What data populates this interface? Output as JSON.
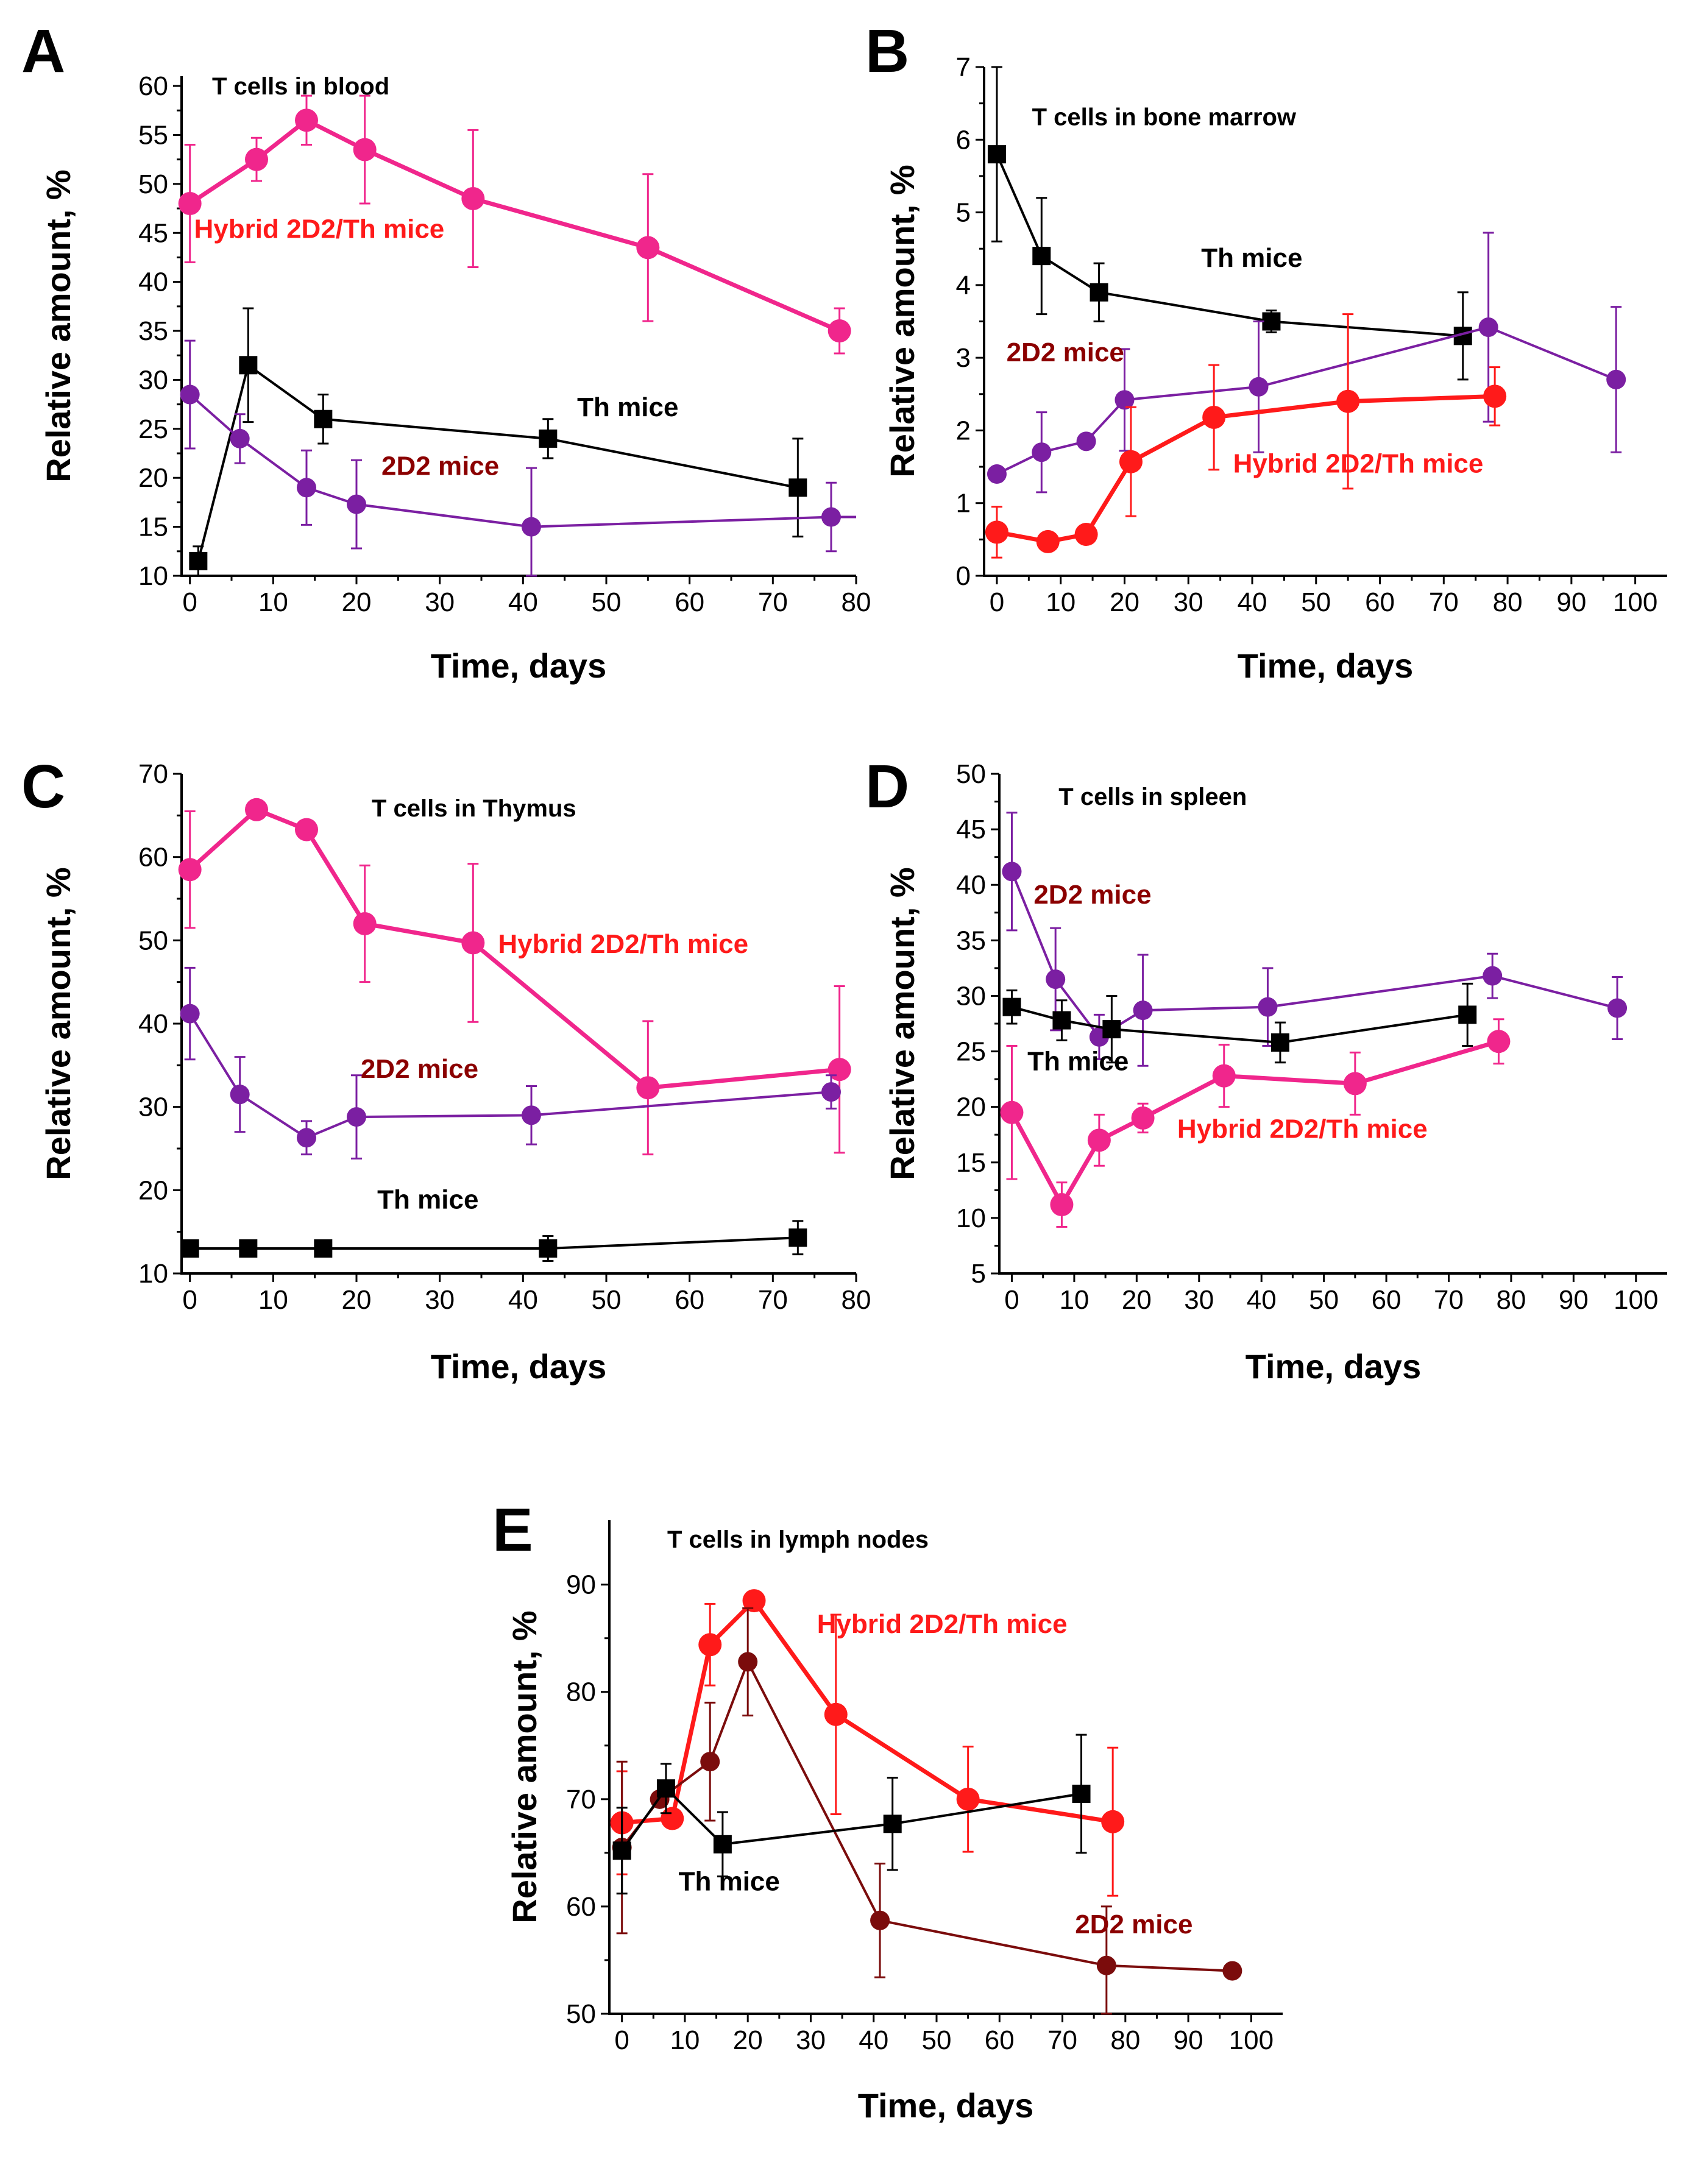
{
  "chart_data": [
    {
      "id": "A",
      "type": "line",
      "panel_letter": "A",
      "title": "T cells in blood",
      "xlabel": "Time, days",
      "ylabel": "Relative amount, %",
      "xlim": [
        -1,
        80
      ],
      "ylim": [
        10,
        61
      ],
      "xticks": [
        0,
        10,
        20,
        30,
        40,
        50,
        60,
        70,
        80
      ],
      "yticks": [
        10,
        15,
        20,
        25,
        30,
        35,
        40,
        45,
        50,
        55,
        60
      ],
      "series": [
        {
          "name": "Hybrid 2D2/Th mice",
          "color": "#f0268c",
          "marker": "circle",
          "lineWidth": 7,
          "x": [
            0,
            8,
            14,
            21,
            34,
            55,
            78
          ],
          "y": [
            48,
            52.5,
            56.5,
            53.5,
            48.5,
            43.5,
            35
          ],
          "err": [
            6,
            2.2,
            2.5,
            5.5,
            7,
            7.5,
            2.3
          ]
        },
        {
          "name": "Th mice",
          "color": "#000000",
          "marker": "square",
          "lineWidth": 4,
          "x": [
            1,
            7,
            16,
            43,
            73
          ],
          "y": [
            11.5,
            31.5,
            26,
            24,
            19
          ],
          "err": [
            1.5,
            5.8,
            2.5,
            2,
            5
          ]
        },
        {
          "name": "2D2 mice",
          "color": "#7b1fa2",
          "marker": "circle",
          "lineWidth": 4,
          "x": [
            0,
            6,
            14,
            20,
            41,
            77,
            80
          ],
          "y": [
            28.5,
            24,
            19,
            17.3,
            15,
            16,
            16
          ],
          "err": [
            5.5,
            2.5,
            3.8,
            4.5,
            6,
            3.5,
            null
          ]
        }
      ],
      "labels": [
        {
          "text": "Hybrid 2D2/Th mice",
          "color": "#ff1a1a",
          "x": 0.5,
          "y": 44.5
        },
        {
          "text": "Th mice",
          "color": "#000000",
          "x": 46.5,
          "y": 26.3
        },
        {
          "text": "2D2 mice",
          "color": "#8b0000",
          "x": 23,
          "y": 20.3
        }
      ]
    },
    {
      "id": "B",
      "type": "line",
      "panel_letter": "B",
      "title": "T cells in bone marrow",
      "xlabel": "Time, days",
      "ylabel": "Relative amount, %",
      "xlim": [
        -2,
        105
      ],
      "ylim": [
        0,
        7
      ],
      "xticks": [
        0,
        10,
        20,
        30,
        40,
        50,
        60,
        70,
        80,
        90,
        100
      ],
      "yticks": [
        0,
        1,
        2,
        3,
        4,
        5,
        6,
        7
      ],
      "series": [
        {
          "name": "Th mice",
          "color": "#000000",
          "marker": "square",
          "lineWidth": 4,
          "x": [
            0,
            7,
            16,
            43,
            73
          ],
          "y": [
            5.8,
            4.4,
            3.9,
            3.5,
            3.3
          ],
          "err": [
            1.2,
            0.8,
            0.4,
            0.15,
            0.6
          ]
        },
        {
          "name": "2D2 mice",
          "color": "#7b1fa2",
          "marker": "circle",
          "lineWidth": 4,
          "x": [
            0,
            7,
            14,
            20,
            41,
            77,
            97
          ],
          "y": [
            1.4,
            1.7,
            1.85,
            2.42,
            2.6,
            3.42,
            2.7
          ],
          "err": [
            null,
            0.55,
            null,
            0.7,
            0.9,
            1.3,
            1.0
          ]
        },
        {
          "name": "Hybrid 2D2/Th mice",
          "color": "#ff1a1a",
          "marker": "circle",
          "lineWidth": 7,
          "x": [
            0,
            8,
            14,
            21,
            34,
            55,
            78
          ],
          "y": [
            0.6,
            0.47,
            0.57,
            1.57,
            2.18,
            2.4,
            2.47
          ],
          "err": [
            0.35,
            null,
            null,
            0.75,
            0.72,
            1.2,
            0.4
          ]
        }
      ],
      "labels": [
        {
          "text": "T cells in bone marrow",
          "color": "#000000",
          "x": 5.5,
          "y": 6.2,
          "size": 40
        },
        {
          "text": "Th mice",
          "color": "#000000",
          "x": 32,
          "y": 4.25
        },
        {
          "text": "2D2 mice",
          "color": "#8b0000",
          "x": 1.5,
          "y": 2.95
        },
        {
          "text": "Hybrid 2D2/Th mice",
          "color": "#ff1a1a",
          "x": 37,
          "y": 1.42
        }
      ]
    },
    {
      "id": "C",
      "type": "line",
      "panel_letter": "C",
      "title": "T cells in Thymus",
      "xlabel": "Time, days",
      "ylabel": "Relative amount, %",
      "xlim": [
        -1,
        80
      ],
      "ylim": [
        10,
        70
      ],
      "xticks": [
        0,
        10,
        20,
        30,
        40,
        50,
        60,
        70,
        80
      ],
      "yticks": [
        10,
        20,
        30,
        40,
        50,
        60,
        70
      ],
      "series": [
        {
          "name": "Hybrid 2D2/Th mice",
          "color": "#f0268c",
          "marker": "circle",
          "lineWidth": 7,
          "x": [
            0,
            8,
            14,
            21,
            34,
            55,
            78
          ],
          "y": [
            58.5,
            65.7,
            63.3,
            52,
            49.7,
            32.3,
            34.5
          ],
          "err": [
            7,
            null,
            null,
            7,
            9.5,
            8,
            10
          ]
        },
        {
          "name": "2D2 mice",
          "color": "#7b1fa2",
          "marker": "circle",
          "lineWidth": 4,
          "x": [
            0,
            6,
            14,
            20,
            41,
            77
          ],
          "y": [
            41.2,
            31.5,
            26.3,
            28.8,
            29,
            31.8
          ],
          "err": [
            5.5,
            4.5,
            2,
            5,
            3.5,
            2
          ]
        },
        {
          "name": "Th mice",
          "color": "#000000",
          "marker": "square",
          "lineWidth": 4,
          "x": [
            0,
            7,
            16,
            43,
            73
          ],
          "y": [
            13,
            13,
            13,
            13,
            14.3
          ],
          "err": [
            null,
            null,
            null,
            1.5,
            2
          ]
        }
      ],
      "labels": [
        {
          "text": "Hybrid 2D2/Th mice",
          "color": "#ff1a1a",
          "x": 37,
          "y": 48.5
        },
        {
          "text": "2D2 mice",
          "color": "#8b0000",
          "x": 20.5,
          "y": 33.5
        },
        {
          "text": "Th mice",
          "color": "#000000",
          "x": 22.5,
          "y": 17.8
        }
      ]
    },
    {
      "id": "D",
      "type": "line",
      "panel_letter": "D",
      "title": "T cells in spleen",
      "xlabel": "Time, days",
      "ylabel": "Relative amount, %",
      "xlim": [
        -2,
        105
      ],
      "ylim": [
        5,
        50
      ],
      "xticks": [
        0,
        10,
        20,
        30,
        40,
        50,
        60,
        70,
        80,
        90,
        100
      ],
      "yticks": [
        5,
        10,
        15,
        20,
        25,
        30,
        35,
        40,
        45,
        50
      ],
      "series": [
        {
          "name": "2D2 mice",
          "color": "#7b1fa2",
          "marker": "circle",
          "lineWidth": 4,
          "x": [
            0,
            7,
            14,
            21,
            41,
            77,
            97
          ],
          "y": [
            41.2,
            31.5,
            26.3,
            28.7,
            29,
            31.8,
            28.9
          ],
          "err": [
            5.3,
            4.6,
            2,
            5,
            3.5,
            2,
            2.8
          ]
        },
        {
          "name": "Th mice",
          "color": "#000000",
          "marker": "square",
          "lineWidth": 4,
          "x": [
            0,
            8,
            16,
            43,
            73
          ],
          "y": [
            29,
            27.8,
            27,
            25.8,
            28.3
          ],
          "err": [
            1.5,
            1.8,
            3,
            1.8,
            2.8
          ]
        },
        {
          "name": "Hybrid 2D2/Th mice",
          "color": "#f0268c",
          "marker": "circle",
          "lineWidth": 7,
          "x": [
            0,
            8,
            14,
            21,
            34,
            55,
            78
          ],
          "y": [
            19.5,
            11.2,
            17,
            19,
            22.8,
            22.1,
            25.9
          ],
          "err": [
            6,
            2,
            2.3,
            1.3,
            2.8,
            2.8,
            2
          ]
        }
      ],
      "labels": [
        {
          "text": "T cells in spleen",
          "color": "#000000",
          "x": 7.5,
          "y": 47.2,
          "size": 40
        },
        {
          "text": "2D2 mice",
          "color": "#8b0000",
          "x": 3.5,
          "y": 38.3
        },
        {
          "text": "Th mice",
          "color": "#000000",
          "x": 2.5,
          "y": 23.3
        },
        {
          "text": "Hybrid 2D2/Th mice",
          "color": "#ff1a1a",
          "x": 26.5,
          "y": 17.2
        }
      ]
    },
    {
      "id": "E",
      "type": "line",
      "panel_letter": "E",
      "title": "T cells in lymph nodes",
      "xlabel": "Time, days",
      "ylabel": "Relative amount, %",
      "xlim": [
        -2,
        105
      ],
      "ylim": [
        50,
        96
      ],
      "xticks": [
        0,
        10,
        20,
        30,
        40,
        50,
        60,
        70,
        80,
        90,
        100
      ],
      "yticks": [
        50,
        60,
        70,
        80,
        90
      ],
      "series": [
        {
          "name": "Hybrid 2D2/Th mice",
          "color": "#ff1a1a",
          "marker": "circle",
          "lineWidth": 7,
          "x": [
            0,
            8,
            14,
            21,
            34,
            55,
            78
          ],
          "y": [
            67.8,
            68.2,
            84.4,
            88.5,
            77.9,
            70,
            67.9
          ],
          "err": [
            4.8,
            null,
            3.8,
            null,
            9.3,
            4.9,
            6.9
          ]
        },
        {
          "name": "2D2 mice",
          "color": "#7b0c0c",
          "marker": "circle",
          "lineWidth": 4,
          "x": [
            0,
            6,
            14,
            20,
            41,
            77,
            97
          ],
          "y": [
            65.5,
            70,
            73.5,
            82.8,
            58.7,
            54.5,
            54
          ],
          "err": [
            8,
            null,
            5.5,
            5,
            5.3,
            5.5,
            null
          ]
        },
        {
          "name": "Th mice",
          "color": "#000000",
          "marker": "square",
          "lineWidth": 4,
          "x": [
            0,
            7,
            16,
            43,
            73
          ],
          "y": [
            65.2,
            71,
            65.8,
            67.7,
            70.5
          ],
          "err": [
            4,
            2.3,
            3,
            4.3,
            5.5
          ]
        }
      ],
      "labels": [
        {
          "text": "Hybrid 2D2/Th mice",
          "color": "#ff1a1a",
          "x": 31,
          "y": 85.5
        },
        {
          "text": "Th mice",
          "color": "#000000",
          "x": 9,
          "y": 61.5
        },
        {
          "text": "2D2 mice",
          "color": "#8b0000",
          "x": 72,
          "y": 57.5
        }
      ]
    }
  ]
}
